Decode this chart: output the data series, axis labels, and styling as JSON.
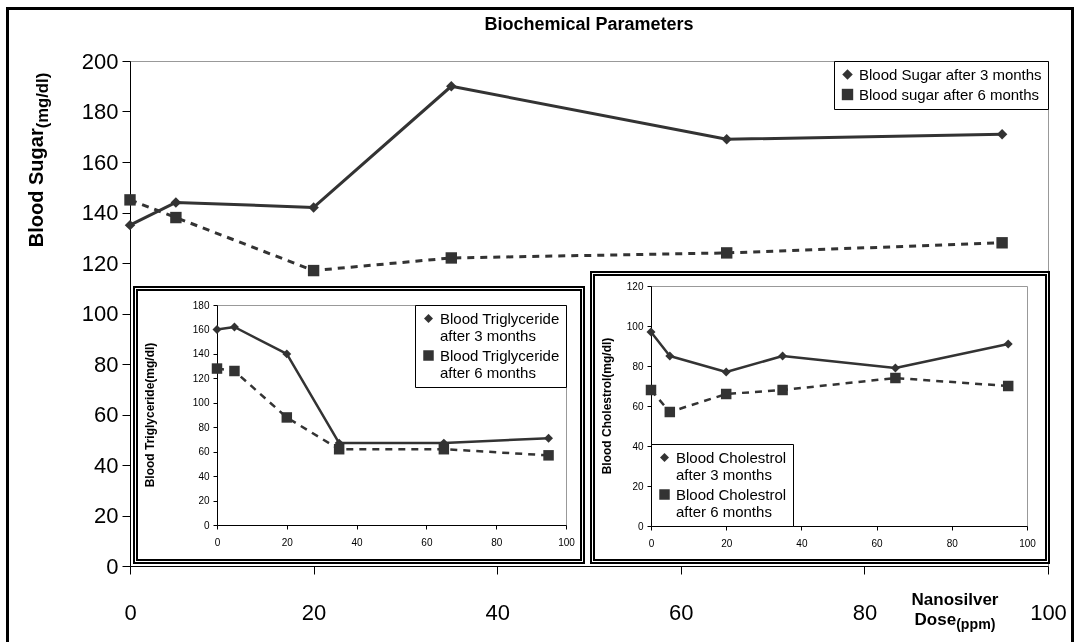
{
  "chart_data": [
    {
      "type": "line",
      "title": "Biochemical Parameters",
      "xlabel": "Nanosilver Dose$_{(ppm)}$",
      "ylabel": "Blood Sugar$_{(mg/dl)}$",
      "x": [
        0,
        5,
        20,
        35,
        65,
        95
      ],
      "xlim": [
        0,
        100
      ],
      "xticks": [
        0,
        20,
        40,
        60,
        80,
        100
      ],
      "ylim": [
        0,
        200
      ],
      "yticks": [
        0,
        20,
        40,
        60,
        80,
        100,
        120,
        140,
        160,
        180,
        200
      ],
      "legend": "top right",
      "series": [
        {
          "name": "Blood Sugar after 3 months",
          "color": "#333333",
          "marker": "diamond",
          "line_style": "solid",
          "values": [
            135,
            144,
            142,
            190,
            169,
            171
          ]
        },
        {
          "name": "Blood sugar after 6 months",
          "color": "#333333",
          "marker": "square",
          "line_style": "dashed",
          "values": [
            145,
            138,
            117,
            122,
            124,
            128
          ]
        }
      ]
    },
    {
      "type": "line",
      "ylabel": "Blood Triglyceride(mg/dl)",
      "x": [
        0,
        5,
        20,
        35,
        65,
        95
      ],
      "xlim": [
        0,
        100
      ],
      "xticks": [
        0,
        20,
        40,
        60,
        80,
        100
      ],
      "ylim": [
        0,
        180
      ],
      "yticks": [
        0,
        20,
        40,
        60,
        80,
        100,
        120,
        140,
        160,
        180
      ],
      "legend": "top right",
      "series": [
        {
          "name": "Blood Triglyceride after 3 months",
          "color": "#333333",
          "marker": "diamond",
          "line_style": "solid",
          "values": [
            160,
            162,
            140,
            67,
            67,
            71
          ]
        },
        {
          "name": "Blood Triglyceride after 6 months",
          "color": "#333333",
          "marker": "square",
          "line_style": "dashed",
          "values": [
            128,
            126,
            88,
            62,
            62,
            57
          ]
        }
      ]
    },
    {
      "type": "line",
      "ylabel": "Blood Cholestrol(mg/dl)",
      "x": [
        0,
        5,
        20,
        35,
        65,
        95
      ],
      "xlim": [
        0,
        100
      ],
      "xticks": [
        0,
        20,
        40,
        60,
        80,
        100
      ],
      "ylim": [
        0,
        120
      ],
      "yticks": [
        0,
        20,
        40,
        60,
        80,
        100,
        120
      ],
      "legend": "bottom left",
      "series": [
        {
          "name": "Blood Cholestrol after 3 months",
          "color": "#333333",
          "marker": "diamond",
          "line_style": "solid",
          "values": [
            97,
            85,
            77,
            85,
            79,
            91
          ]
        },
        {
          "name": "Blood Cholestrol after 6 months",
          "color": "#333333",
          "marker": "square",
          "line_style": "dashed",
          "values": [
            68,
            57,
            66,
            68,
            74,
            70
          ]
        }
      ]
    }
  ]
}
